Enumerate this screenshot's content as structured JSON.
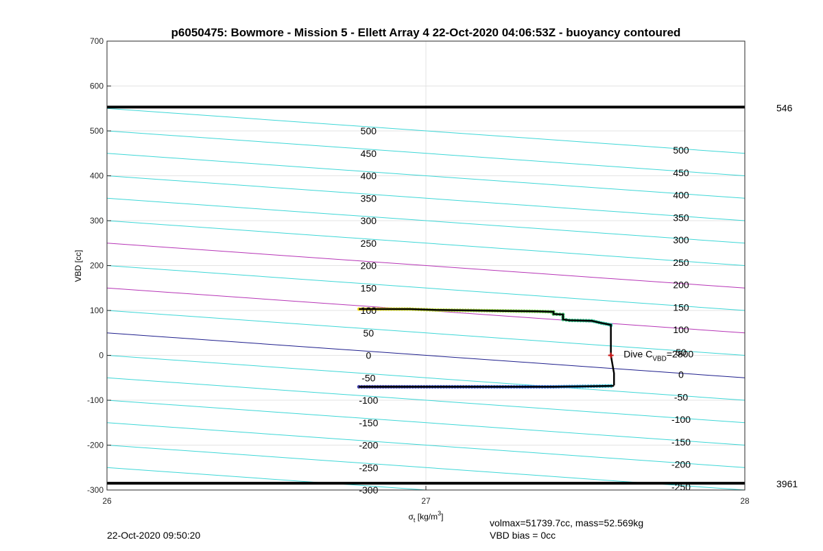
{
  "footer": {
    "timestamp": "22-Oct-2020 09:50:20",
    "volmax": "volmax=51739.7cc, mass=52.569kg",
    "vbd_bias": "VBD bias = 0cc"
  },
  "chart_data": {
    "type": "scatter",
    "title": "p6050475: Bowmore - Mission 5 - Ellett Array 4 22-Oct-2020 04:06:53Z - buoyancy contoured",
    "xlabel_main": "σ",
    "xlabel_sub": "t",
    "xlabel_units": " [kg/m",
    "xlabel_sup": "3",
    "xlabel_close": "]",
    "ylabel": "VBD [cc]",
    "xlim": [
      26,
      28
    ],
    "ylim": [
      -300,
      700
    ],
    "x_ticks": [
      26,
      27,
      28
    ],
    "x_tick_labels": [
      "26",
      "27",
      "28"
    ],
    "y_ticks": [
      -300,
      -200,
      -100,
      0,
      100,
      200,
      300,
      400,
      500,
      600,
      700
    ],
    "y_tick_labels": [
      "-300",
      "-200",
      "-100",
      "0",
      "100",
      "200",
      "300",
      "400",
      "500",
      "600",
      "700"
    ],
    "grid": true,
    "colors": {
      "contour": "#3ad6d6",
      "highlight_contour": "#b531b5",
      "zero_contour": "#1a1a8a",
      "limit_line": "#000000",
      "profile_line": "#000000",
      "center_marker": "#cc1111"
    },
    "limit_lines": [
      {
        "y": 553,
        "label": "546"
      },
      {
        "y": -285,
        "label": "3961"
      }
    ],
    "contour_slope_per_sigma": -50,
    "contours": [
      {
        "y_at_26": 550,
        "style": "normal"
      },
      {
        "y_at_26": 500,
        "style": "normal"
      },
      {
        "y_at_26": 450,
        "style": "normal"
      },
      {
        "y_at_26": 400,
        "style": "normal"
      },
      {
        "y_at_26": 350,
        "style": "normal"
      },
      {
        "y_at_26": 300,
        "style": "normal"
      },
      {
        "y_at_26": 250,
        "style": "highlight"
      },
      {
        "y_at_26": 200,
        "style": "normal"
      },
      {
        "y_at_26": 150,
        "style": "highlight"
      },
      {
        "y_at_26": 100,
        "style": "normal"
      },
      {
        "y_at_26": 50,
        "style": "zero"
      },
      {
        "y_at_26": 0,
        "style": "normal"
      },
      {
        "y_at_26": -50,
        "style": "normal"
      },
      {
        "y_at_26": -100,
        "style": "normal"
      },
      {
        "y_at_26": -150,
        "style": "normal"
      },
      {
        "y_at_26": -200,
        "style": "normal"
      },
      {
        "y_at_26": -250,
        "style": "normal"
      },
      {
        "y_at_26": -300,
        "style": "normal"
      }
    ],
    "contour_labels_left": {
      "x": 26.79,
      "labels": [
        {
          "text": "500",
          "y": 500
        },
        {
          "text": "450",
          "y": 450
        },
        {
          "text": "400",
          "y": 400
        },
        {
          "text": "350",
          "y": 350
        },
        {
          "text": "300",
          "y": 300
        },
        {
          "text": "250",
          "y": 250
        },
        {
          "text": "200",
          "y": 200
        },
        {
          "text": "150",
          "y": 150
        },
        {
          "text": "100",
          "y": 100
        },
        {
          "text": "50",
          "y": 50
        },
        {
          "text": "0",
          "y": 0
        },
        {
          "text": "-50",
          "y": -50
        },
        {
          "text": "-100",
          "y": -100
        },
        {
          "text": "-150",
          "y": -150
        },
        {
          "text": "-200",
          "y": -200
        },
        {
          "text": "-250",
          "y": -250
        },
        {
          "text": "-300",
          "y": -300
        }
      ]
    },
    "contour_labels_right": {
      "x": 27.77,
      "labels": [
        {
          "text": "500",
          "y": 457
        },
        {
          "text": "450",
          "y": 407
        },
        {
          "text": "400",
          "y": 357
        },
        {
          "text": "350",
          "y": 307
        },
        {
          "text": "300",
          "y": 257
        },
        {
          "text": "250",
          "y": 207
        },
        {
          "text": "200",
          "y": 157
        },
        {
          "text": "150",
          "y": 107
        },
        {
          "text": "100",
          "y": 57
        },
        {
          "text": "50",
          "y": 7
        },
        {
          "text": "0",
          "y": -43
        },
        {
          "text": "-50",
          "y": -93
        },
        {
          "text": "-100",
          "y": -143
        },
        {
          "text": "-150",
          "y": -193
        },
        {
          "text": "-200",
          "y": -243
        },
        {
          "text": "-250",
          "y": -293
        }
      ]
    },
    "profile_upper": [
      [
        26.79,
        103
      ],
      [
        26.85,
        103
      ],
      [
        26.95,
        103
      ],
      [
        27.03,
        101
      ],
      [
        27.15,
        100
      ],
      [
        27.25,
        99
      ],
      [
        27.35,
        98
      ],
      [
        27.4,
        97
      ],
      [
        27.4,
        92
      ],
      [
        27.43,
        91
      ],
      [
        27.43,
        80
      ],
      [
        27.45,
        78
      ],
      [
        27.52,
        77
      ],
      [
        27.55,
        72
      ],
      [
        27.58,
        68
      ],
      [
        27.58,
        65
      ]
    ],
    "profile_descent": [
      [
        27.58,
        65
      ],
      [
        27.58,
        40
      ],
      [
        27.58,
        0
      ],
      [
        27.59,
        -40
      ],
      [
        27.59,
        -67
      ]
    ],
    "profile_lower": [
      [
        26.79,
        -70
      ],
      [
        26.95,
        -70
      ],
      [
        27.1,
        -70
      ],
      [
        27.25,
        -70
      ],
      [
        27.4,
        -70
      ],
      [
        27.5,
        -69
      ],
      [
        27.59,
        -68
      ]
    ],
    "center_marker": [
      27.58,
      0
    ],
    "dive_annotation": {
      "prefix": "Dive C",
      "subscript": "VBD",
      "suffix": "=2800",
      "x": 27.62,
      "y": 0
    }
  }
}
